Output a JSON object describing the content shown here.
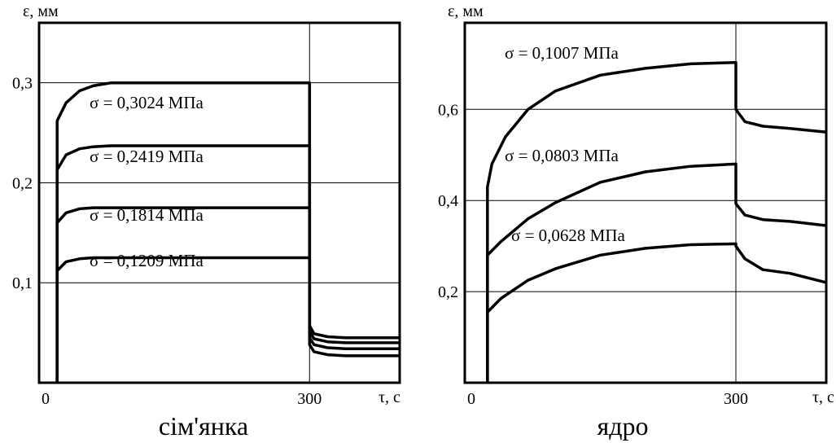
{
  "chart_data": [
    {
      "type": "line",
      "caption": "сім'янка",
      "ylabel": "ε, мм",
      "xlabel": "τ, с",
      "xlim": [
        0,
        400
      ],
      "ylim": [
        0,
        0.36
      ],
      "x_ticks": [
        {
          "value": 0,
          "label": "0"
        },
        {
          "value": 300,
          "label": "300"
        }
      ],
      "y_ticks": [
        {
          "value": 0.1,
          "label": "0,1"
        },
        {
          "value": 0.2,
          "label": "0,2"
        },
        {
          "value": 0.3,
          "label": "0,3"
        }
      ],
      "grid_x": [
        300
      ],
      "grid_y": [
        0.1,
        0.2,
        0.3
      ],
      "series": [
        {
          "name": "σ = 0,3024 МПа",
          "x": [
            20,
            20,
            30,
            45,
            60,
            80,
            100,
            300,
            300,
            305,
            320,
            340,
            400
          ],
          "y": [
            0,
            0.262,
            0.28,
            0.292,
            0.297,
            0.3,
            0.3,
            0.3,
            0.057,
            0.049,
            0.046,
            0.045,
            0.045
          ]
        },
        {
          "name": "σ = 0,2419 МПа",
          "x": [
            20,
            20,
            30,
            45,
            60,
            80,
            100,
            300,
            300,
            305,
            320,
            340,
            400
          ],
          "y": [
            0,
            0.213,
            0.228,
            0.234,
            0.236,
            0.237,
            0.237,
            0.237,
            0.051,
            0.044,
            0.041,
            0.04,
            0.04
          ]
        },
        {
          "name": "σ = 0,1814 МПа",
          "x": [
            20,
            20,
            30,
            45,
            60,
            80,
            100,
            300,
            300,
            305,
            320,
            340,
            400
          ],
          "y": [
            0,
            0.16,
            0.17,
            0.174,
            0.175,
            0.175,
            0.175,
            0.175,
            0.045,
            0.038,
            0.035,
            0.034,
            0.034
          ]
        },
        {
          "name": "σ = 0,1209 МПа",
          "x": [
            20,
            20,
            30,
            45,
            60,
            80,
            100,
            300,
            300,
            305,
            320,
            340,
            400
          ],
          "y": [
            0,
            0.112,
            0.121,
            0.124,
            0.125,
            0.125,
            0.125,
            0.125,
            0.038,
            0.031,
            0.028,
            0.027,
            0.027
          ]
        }
      ]
    },
    {
      "type": "line",
      "caption": "ядро",
      "ylabel": "ε, мм",
      "xlabel": "τ, с",
      "xlim": [
        0,
        400
      ],
      "ylim": [
        0,
        0.79
      ],
      "x_ticks": [
        {
          "value": 0,
          "label": "0"
        },
        {
          "value": 300,
          "label": "300"
        }
      ],
      "y_ticks": [
        {
          "value": 0.2,
          "label": "0,2"
        },
        {
          "value": 0.4,
          "label": "0,4"
        },
        {
          "value": 0.6,
          "label": "0,6"
        }
      ],
      "grid_x": [
        300
      ],
      "grid_y": [
        0.2,
        0.4,
        0.6
      ],
      "series": [
        {
          "name": "σ = 0,1007 МПа",
          "x": [
            25,
            25,
            30,
            45,
            70,
            100,
            150,
            200,
            250,
            300,
            300,
            310,
            330,
            360,
            400
          ],
          "y": [
            0,
            0.43,
            0.48,
            0.54,
            0.6,
            0.64,
            0.675,
            0.69,
            0.7,
            0.703,
            0.6,
            0.573,
            0.563,
            0.558,
            0.55
          ]
        },
        {
          "name": "σ = 0,0803 МПа",
          "x": [
            25,
            25,
            40,
            70,
            100,
            150,
            200,
            250,
            300,
            300,
            310,
            330,
            360,
            400
          ],
          "y": [
            0,
            0.28,
            0.31,
            0.36,
            0.395,
            0.44,
            0.463,
            0.475,
            0.48,
            0.393,
            0.368,
            0.358,
            0.354,
            0.345
          ]
        },
        {
          "name": "σ = 0,0628 МПа",
          "x": [
            25,
            25,
            40,
            70,
            100,
            150,
            200,
            250,
            300,
            300,
            310,
            330,
            360,
            400
          ],
          "y": [
            0,
            0.155,
            0.185,
            0.225,
            0.25,
            0.28,
            0.295,
            0.303,
            0.305,
            0.3,
            0.272,
            0.248,
            0.24,
            0.22
          ]
        }
      ]
    }
  ]
}
